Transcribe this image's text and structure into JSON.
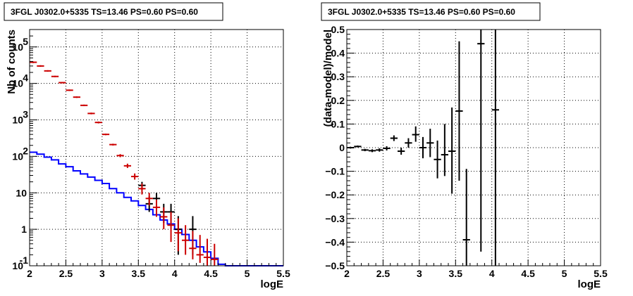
{
  "colors": {
    "data": "#000000",
    "model": "#cc0000",
    "background_model": "#0000ff"
  },
  "chart_data": [
    {
      "type": "line",
      "title": "3FGL J0302.0+5335 TS=13.46 PS=0.60 PS=0.60",
      "xlabel": "logE",
      "ylabel": "Nb of counts",
      "xlim": [
        2,
        5.5
      ],
      "ylim": [
        0.1,
        300000
      ],
      "yscale": "log",
      "grid": true,
      "xticks": [
        "2",
        "2.5",
        "3",
        "3.5",
        "4",
        "4.5",
        "5",
        "5.5"
      ],
      "yticks": [
        {
          "value": 0.1,
          "label": "10",
          "exp": "-1"
        },
        {
          "value": 1,
          "label": "1",
          "exp": ""
        },
        {
          "value": 10,
          "label": "10",
          "exp": ""
        },
        {
          "value": 100,
          "label": "10",
          "exp": "2"
        },
        {
          "value": 1000,
          "label": "10",
          "exp": "3"
        },
        {
          "value": 10000,
          "label": "10",
          "exp": "4"
        },
        {
          "value": 100000,
          "label": "10",
          "exp": "5"
        }
      ],
      "bins": [
        2.0,
        2.1,
        2.2,
        2.3,
        2.4,
        2.5,
        2.6,
        2.7,
        2.8,
        2.9,
        3.0,
        3.1,
        3.2,
        3.3,
        3.4,
        3.5,
        3.6,
        3.7,
        3.8,
        3.9,
        4.0,
        4.1,
        4.2,
        4.3,
        4.4,
        4.5,
        4.6,
        4.7,
        4.8,
        4.9,
        5.0,
        5.1,
        5.2,
        5.3,
        5.4,
        5.5
      ],
      "series": [
        {
          "role": "background_model",
          "step_values": [
            130,
            115,
            95,
            80,
            62,
            52,
            40,
            33,
            27,
            22,
            18,
            13,
            10,
            7.5,
            6,
            4.5,
            3.5,
            2.5,
            1.8,
            1.4,
            1.0,
            0.72,
            0.5,
            0.33,
            0.24,
            0.16,
            0.11,
            0.1,
            0.1,
            0.1,
            0.1,
            0.1,
            0.1,
            0.1,
            0.1
          ]
        },
        {
          "role": "model",
          "points": [
            {
              "x": 2.05,
              "y": 38000,
              "lo": 36000,
              "hi": 40000
            },
            {
              "x": 2.15,
              "y": 30000,
              "lo": 28500,
              "hi": 31500
            },
            {
              "x": 2.25,
              "y": 22000,
              "lo": 21000,
              "hi": 23000
            },
            {
              "x": 2.35,
              "y": 15500,
              "lo": 14800,
              "hi": 16200
            },
            {
              "x": 2.45,
              "y": 10500,
              "lo": 10000,
              "hi": 11000
            },
            {
              "x": 2.55,
              "y": 6500,
              "lo": 6200,
              "hi": 6800
            },
            {
              "x": 2.65,
              "y": 4200,
              "lo": 4000,
              "hi": 4400
            },
            {
              "x": 2.75,
              "y": 2500,
              "lo": 2380,
              "hi": 2620
            },
            {
              "x": 2.85,
              "y": 1500,
              "lo": 1420,
              "hi": 1580
            },
            {
              "x": 2.95,
              "y": 850,
              "lo": 800,
              "hi": 900
            },
            {
              "x": 3.05,
              "y": 400,
              "lo": 380,
              "hi": 420
            },
            {
              "x": 3.15,
              "y": 210,
              "lo": 198,
              "hi": 222
            },
            {
              "x": 3.25,
              "y": 105,
              "lo": 95,
              "hi": 115
            },
            {
              "x": 3.35,
              "y": 55,
              "lo": 48,
              "hi": 63
            },
            {
              "x": 3.45,
              "y": 28,
              "lo": 23,
              "hi": 34
            },
            {
              "x": 3.55,
              "y": 13,
              "lo": 9,
              "hi": 18
            },
            {
              "x": 3.65,
              "y": 7,
              "lo": 4.5,
              "hi": 10
            },
            {
              "x": 3.75,
              "y": 4,
              "lo": 2.2,
              "hi": 6.5
            },
            {
              "x": 3.85,
              "y": 2.2,
              "lo": 1.0,
              "hi": 4.0
            },
            {
              "x": 3.95,
              "y": 1.3,
              "lo": 0.45,
              "hi": 3.0
            },
            {
              "x": 4.05,
              "y": 0.8,
              "lo": 0.25,
              "hi": 2.0
            },
            {
              "x": 4.15,
              "y": 0.5,
              "lo": 0.2,
              "hi": 1.3
            },
            {
              "x": 4.25,
              "y": 0.3,
              "lo": 0.15,
              "hi": 0.9
            },
            {
              "x": 4.35,
              "y": 0.2,
              "lo": 0.12,
              "hi": 0.7
            },
            {
              "x": 4.45,
              "y": 0.17,
              "lo": 0.1,
              "hi": 0.55
            },
            {
              "x": 4.55,
              "y": 0.15,
              "lo": 0.1,
              "hi": 0.4
            }
          ]
        },
        {
          "role": "data",
          "points": [
            {
              "x": 3.55,
              "y": 16,
              "lo": 12,
              "hi": 20
            },
            {
              "x": 3.65,
              "y": 5,
              "lo": 3,
              "hi": 8
            },
            {
              "x": 3.75,
              "y": 7,
              "lo": 4.5,
              "hi": 10
            },
            {
              "x": 3.85,
              "y": 3,
              "lo": 1.5,
              "hi": 5
            },
            {
              "x": 3.95,
              "y": 3,
              "lo": 1.5,
              "hi": 5
            },
            {
              "x": 4.05,
              "y": 1,
              "lo": 0.2,
              "hi": 2.3
            },
            {
              "x": 4.25,
              "y": 1,
              "lo": 0.2,
              "hi": 2.3
            }
          ]
        }
      ]
    },
    {
      "type": "scatter",
      "title": "3FGL J0302.0+5335 TS=13.46 PS=0.60 PS=0.60",
      "xlabel": "logE",
      "ylabel": "(data-model)/model",
      "xlim": [
        2,
        5.5
      ],
      "ylim": [
        -0.5,
        0.5
      ],
      "grid": true,
      "xticks": [
        "2",
        "2.5",
        "3",
        "3.5",
        "4",
        "4.5",
        "5",
        "5.5"
      ],
      "yticks": [
        "−0.5",
        "−0.4",
        "−0.3",
        "−0.2",
        "−0.1",
        "0",
        "0.1",
        "0.2",
        "0.3",
        "0.4",
        "0.5"
      ],
      "points": [
        {
          "x": 2.05,
          "y": 0.0,
          "lo": -0.004,
          "hi": 0.004
        },
        {
          "x": 2.15,
          "y": 0.005,
          "lo": 0.001,
          "hi": 0.009
        },
        {
          "x": 2.25,
          "y": -0.01,
          "lo": -0.015,
          "hi": -0.005
        },
        {
          "x": 2.35,
          "y": -0.013,
          "lo": -0.019,
          "hi": -0.007
        },
        {
          "x": 2.45,
          "y": -0.01,
          "lo": -0.017,
          "hi": -0.003
        },
        {
          "x": 2.55,
          "y": -0.003,
          "lo": -0.012,
          "hi": 0.006
        },
        {
          "x": 2.65,
          "y": 0.04,
          "lo": 0.028,
          "hi": 0.052
        },
        {
          "x": 2.75,
          "y": -0.015,
          "lo": -0.03,
          "hi": 0.0
        },
        {
          "x": 2.85,
          "y": 0.02,
          "lo": 0.0,
          "hi": 0.04
        },
        {
          "x": 2.95,
          "y": 0.055,
          "lo": 0.025,
          "hi": 0.09
        },
        {
          "x": 3.05,
          "y": 0.0,
          "lo": -0.045,
          "hi": 0.045
        },
        {
          "x": 3.15,
          "y": 0.02,
          "lo": -0.04,
          "hi": 0.08
        },
        {
          "x": 3.25,
          "y": -0.05,
          "lo": -0.13,
          "hi": 0.03
        },
        {
          "x": 3.35,
          "y": -0.03,
          "lo": -0.12,
          "hi": 0.1
        },
        {
          "x": 3.45,
          "y": -0.015,
          "lo": -0.195,
          "hi": 0.17
        },
        {
          "x": 3.55,
          "y": 0.155,
          "lo": -0.14,
          "hi": 0.45
        },
        {
          "x": 3.65,
          "y": -0.39,
          "lo": -0.5,
          "hi": -0.09
        },
        {
          "x": 3.85,
          "y": 0.44,
          "lo": -0.44,
          "hi": 0.5
        },
        {
          "x": 4.05,
          "y": 0.16,
          "lo": -0.5,
          "hi": 0.5
        }
      ]
    }
  ]
}
